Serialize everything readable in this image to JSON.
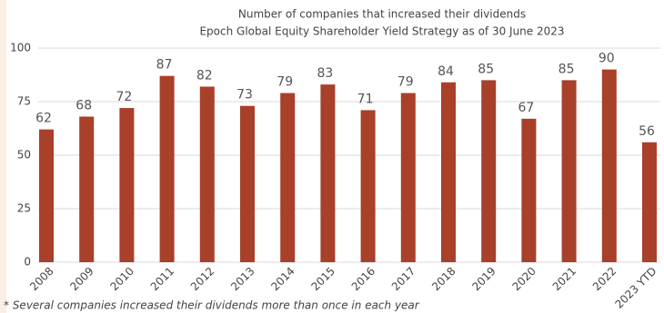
{
  "chart_data": {
    "type": "bar",
    "title": "Number of companies that increased their dividends",
    "subtitle": "Epoch Global Equity Shareholder Yield Strategy as of 30 June 2023",
    "categories": [
      "2008",
      "2009",
      "2010",
      "2011",
      "2012",
      "2013",
      "2014",
      "2015",
      "2016",
      "2017",
      "2018",
      "2019",
      "2020",
      "2021",
      "2022",
      "2023 YTD"
    ],
    "values": [
      62,
      68,
      72,
      87,
      82,
      73,
      79,
      83,
      71,
      79,
      84,
      85,
      67,
      85,
      90,
      56
    ],
    "color": "#a8402a",
    "ylim": [
      0,
      100
    ],
    "yticks": [
      0,
      25,
      50,
      75,
      100
    ],
    "grid": true,
    "footnote": "* Several companies increased their dividends more than once in each year"
  }
}
